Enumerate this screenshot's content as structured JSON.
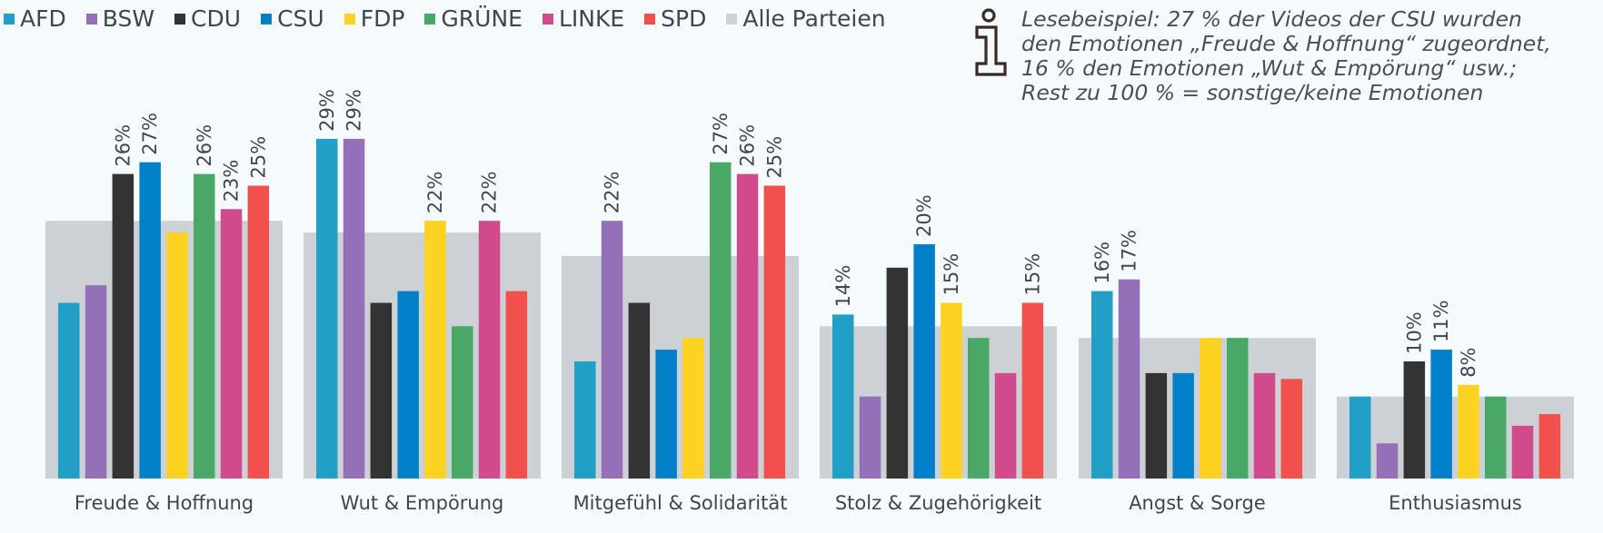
{
  "legend": [
    {
      "name": "AFD",
      "color": "#229fc7"
    },
    {
      "name": "BSW",
      "color": "#9470b9"
    },
    {
      "name": "CDU",
      "color": "#333333"
    },
    {
      "name": "CSU",
      "color": "#0080c8"
    },
    {
      "name": "FDP",
      "color": "#fdd221"
    },
    {
      "name": "GRÜNE",
      "color": "#4aa866"
    },
    {
      "name": "LINKE",
      "color": "#d14a8c"
    },
    {
      "name": "SPD",
      "color": "#f2504c"
    },
    {
      "name": "Alle Parteien",
      "color": "#cdd1d5"
    }
  ],
  "note": {
    "icon": "info-icon",
    "text": "Lesebeispiel: 27 % der Videos der CSU wurden\nden Emotionen  „Freude & Hoffnung“ zugeordnet,\n16 % den Emotionen „Wut & Empörung“ usw.;\nRest zu 100 % = sonstige/keine Emotionen"
  },
  "chart_data": {
    "type": "bar",
    "title": "",
    "xlabel": "",
    "ylabel": "",
    "ylim": [
      0,
      30
    ],
    "grid": false,
    "legend_position": "top-left",
    "value_unit": "%",
    "categories": [
      "Freude & Hoffnung",
      "Wut & Empörung",
      "Mitgefühl & Solidarität",
      "Stolz & Zugehörigkeit",
      "Angst & Sorge",
      "Enthusiasmus"
    ],
    "background_series": {
      "name": "Alle Parteien",
      "color": "#cdd1d5",
      "values": [
        22,
        21,
        19,
        13,
        12,
        7
      ]
    },
    "series": [
      {
        "name": "AFD",
        "color": "#229fc7",
        "values": [
          15,
          29,
          10,
          14,
          16,
          7
        ],
        "labeled": [
          false,
          true,
          false,
          true,
          true,
          false
        ]
      },
      {
        "name": "BSW",
        "color": "#9470b9",
        "values": [
          16.5,
          29,
          22,
          7,
          17,
          3
        ],
        "labeled": [
          false,
          true,
          true,
          false,
          true,
          false
        ]
      },
      {
        "name": "CDU",
        "color": "#333333",
        "values": [
          26,
          15,
          15,
          18,
          9,
          10
        ],
        "labeled": [
          true,
          false,
          false,
          false,
          false,
          true
        ]
      },
      {
        "name": "CSU",
        "color": "#0080c8",
        "values": [
          27,
          16,
          11,
          20,
          9,
          11
        ],
        "labeled": [
          true,
          false,
          false,
          true,
          false,
          true
        ]
      },
      {
        "name": "FDP",
        "color": "#fdd221",
        "values": [
          21,
          22,
          12,
          15,
          12,
          8
        ],
        "labeled": [
          false,
          true,
          false,
          true,
          false,
          true
        ]
      },
      {
        "name": "GRÜNE",
        "color": "#4aa866",
        "values": [
          26,
          13,
          27,
          12,
          12,
          7
        ],
        "labeled": [
          true,
          false,
          true,
          false,
          false,
          false
        ]
      },
      {
        "name": "LINKE",
        "color": "#d14a8c",
        "values": [
          23,
          22,
          26,
          9,
          9,
          4.5
        ],
        "labeled": [
          true,
          true,
          true,
          false,
          false,
          false
        ]
      },
      {
        "name": "SPD",
        "color": "#f2504c",
        "values": [
          25,
          16,
          25,
          15,
          8.5,
          5.5
        ],
        "labeled": [
          true,
          false,
          true,
          true,
          false,
          false
        ]
      }
    ]
  }
}
